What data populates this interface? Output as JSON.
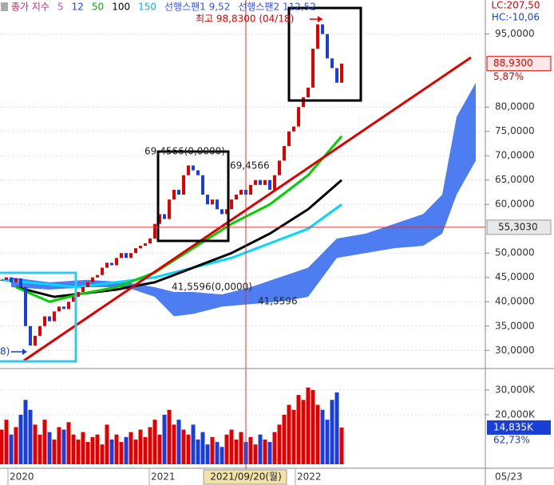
{
  "chart_data": {
    "type": "candlestick",
    "legend": [
      {
        "text": "종가 지수",
        "color": "#c03070"
      },
      {
        "text": "5",
        "color": "#e040e0"
      },
      {
        "text": "12",
        "color": "#2040ff"
      },
      {
        "text": "50",
        "color": "#00b000"
      },
      {
        "text": "100",
        "color": "#000000"
      },
      {
        "text": "150",
        "color": "#00b8f0"
      },
      {
        "text": "선행스팬1 9,52",
        "color": "#3050ff"
      },
      {
        "text": "선행스팬2 112,52",
        "color": "#3050ff"
      }
    ],
    "lc": "LC:207,50",
    "hc": "HC:-10,06",
    "closes": [
      44.5,
      45,
      44,
      44.8,
      43,
      35,
      31,
      33,
      35,
      37,
      36,
      38,
      39,
      38.5,
      40,
      41,
      42,
      43,
      44,
      45,
      45.5,
      47,
      48,
      47.5,
      49,
      50,
      49,
      50,
      51,
      51.5,
      52,
      53,
      56,
      58,
      57,
      61,
      63,
      62,
      66,
      68,
      67,
      66,
      62,
      60,
      61,
      59,
      58,
      59,
      61,
      62,
      63,
      62,
      64,
      65,
      64,
      65,
      63,
      66,
      69,
      72,
      75,
      76,
      80,
      82,
      84,
      92,
      97,
      95,
      90,
      88,
      85,
      88.93
    ],
    "up_color": "#e00000",
    "down_color": "#1a3fd8",
    "ylim": [
      26.6,
      102
    ],
    "yticks": [
      {
        "value": 95,
        "label": "95,0000"
      },
      {
        "value": 80,
        "label": "80,0000"
      },
      {
        "value": 75,
        "label": "75,0000"
      },
      {
        "value": 70,
        "label": "70,0000"
      },
      {
        "value": 65,
        "label": "65,0000"
      },
      {
        "value": 60,
        "label": "60,0000"
      },
      {
        "value": 50,
        "label": "50,0000"
      },
      {
        "value": 45,
        "label": "45,0000"
      },
      {
        "value": 40,
        "label": "40,0000"
      },
      {
        "value": 35,
        "label": "35,0000"
      },
      {
        "value": 30,
        "label": "30,0000"
      }
    ],
    "cloud": {
      "color": "#3a6ff0",
      "x": [
        2,
        10,
        18,
        26,
        32,
        36,
        40,
        46,
        52,
        58,
        64,
        70,
        76,
        82,
        88,
        92,
        95,
        99
      ],
      "upper": [
        45,
        44,
        44.5,
        44,
        43,
        42,
        42,
        41.5,
        43,
        45,
        47,
        53,
        54,
        56,
        58,
        62,
        78,
        85
      ],
      "lower": [
        43,
        42.5,
        43,
        43,
        41,
        37,
        37.5,
        39,
        39.5,
        40,
        41,
        49,
        50,
        51,
        51.5,
        54,
        62,
        69
      ]
    },
    "moving_averages": [
      {
        "color": "#00d8ff",
        "x": [
          0,
          16,
          32,
          48,
          64,
          71
        ],
        "values": [
          44.5,
          43,
          45,
          49,
          55,
          60
        ]
      },
      {
        "color": "#000000",
        "x": [
          3,
          11,
          24,
          32,
          40,
          48,
          56,
          64,
          71
        ],
        "values": [
          43,
          41,
          42.5,
          44,
          47,
          50,
          54,
          59,
          65
        ]
      },
      {
        "color": "#00d000",
        "x": [
          3,
          10,
          16,
          24,
          32,
          40,
          48,
          56,
          64,
          71
        ],
        "values": [
          43,
          40,
          41.5,
          43,
          46,
          51,
          56,
          60,
          66,
          74
        ]
      }
    ],
    "last_price": {
      "value": 88.93,
      "label": "88,9300"
    },
    "change": {
      "value": 5.87,
      "label": "5,87%"
    },
    "cursor_price": {
      "value": 55.303,
      "label": "55,3030"
    },
    "volume": {
      "values": [
        14000,
        18000,
        12000,
        15000,
        20000,
        26000,
        22000,
        16000,
        12000,
        18000,
        13000,
        10000,
        15000,
        14000,
        17000,
        12000,
        10000,
        13000,
        9000,
        11000,
        12000,
        8000,
        16000,
        10000,
        12000,
        9000,
        11000,
        13000,
        10000,
        14000,
        11000,
        15000,
        18000,
        12000,
        20000,
        22000,
        16000,
        18000,
        14000,
        12000,
        16000,
        10000,
        13000,
        8000,
        11000,
        9000,
        7000,
        12000,
        14000,
        10000,
        13000,
        9000,
        11000,
        8000,
        12000,
        10000,
        9000,
        13000,
        16000,
        20000,
        24000,
        22000,
        28000,
        26000,
        31000,
        30000,
        24000,
        22000,
        18000,
        26000,
        29000,
        14835
      ],
      "ylim": [
        0,
        37700
      ],
      "yticks": [
        {
          "value": 30000,
          "label": "30,000K"
        },
        {
          "value": 20000,
          "label": "20,000K"
        }
      ],
      "last": {
        "value": 14835,
        "label": "14,835K"
      },
      "ratio": {
        "value": 62.73,
        "label": "62,73%"
      }
    },
    "x_labels": [
      {
        "value": 2,
        "label": "2020"
      },
      {
        "value": 31.5,
        "label": "2021"
      },
      {
        "value": 62,
        "label": "2022"
      }
    ],
    "cursor_date": {
      "value": 51,
      "label": "2021/09/20(월)"
    },
    "next_date": "05/23",
    "annotations": [
      "최고 98,8300 (04/18)",
      "69,4566(0,0000)",
      "69,4566",
      "41,5596(0,0000)",
      "41,5596",
      "8)"
    ]
  }
}
